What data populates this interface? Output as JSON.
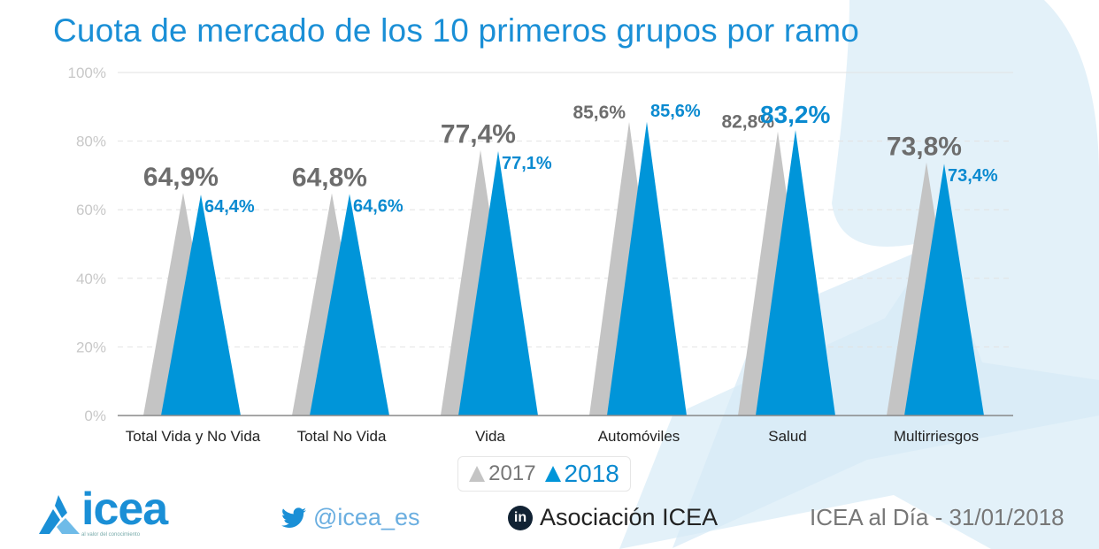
{
  "title": "Cuota de mercado de los 10 primeros grupos por ramo",
  "colors": {
    "series_2017": "#c4c4c4",
    "series_2018": "#0095d9",
    "label_2017": "#6d6d6d",
    "label_2018": "#0a8ad0",
    "title": "#1a8fd6",
    "background_shape": "#e3f1f9"
  },
  "chart_data": {
    "type": "bar",
    "mark_shape": "triangle",
    "categories": [
      "Total Vida y No Vida",
      "Total No Vida",
      "Vida",
      "Automóviles",
      "Salud",
      "Multirriesgos"
    ],
    "series": [
      {
        "name": "2017",
        "values": [
          64.9,
          64.8,
          77.4,
          85.6,
          82.8,
          73.8
        ],
        "labels": [
          "64,9%",
          "64,8%",
          "77,4%",
          "85,6%",
          "82,8%",
          "73,8%"
        ]
      },
      {
        "name": "2018",
        "values": [
          64.4,
          64.6,
          77.1,
          85.6,
          83.2,
          73.4
        ],
        "labels": [
          "64,4%",
          "64,6%",
          "77,1%",
          "85,6%",
          "83,2%",
          "73,4%"
        ]
      }
    ],
    "ylim": [
      0,
      100
    ],
    "yticks": [
      "0%",
      "20%",
      "40%",
      "60%",
      "80%",
      "100%"
    ],
    "grid": true,
    "legend_position": "bottom"
  },
  "footer": {
    "logo_text": "icea",
    "logo_tagline": "al valor del conocimiento",
    "twitter": "@icea_es",
    "linkedin": "Asociación ICEA",
    "linkedin_icon_text": "in",
    "edition": "ICEA al Día - 31/01/2018"
  }
}
